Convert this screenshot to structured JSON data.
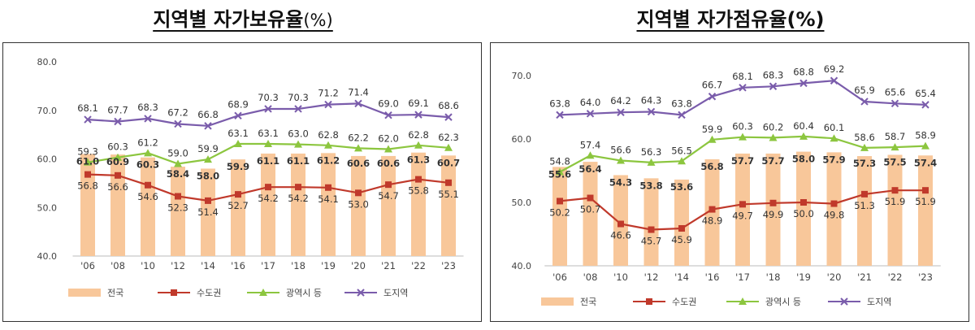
{
  "colors": {
    "bar": "#f8c79a",
    "capital": "#c0392b",
    "metro": "#8cc63f",
    "province": "#7a5cab",
    "text": "#444444"
  },
  "chart_data": [
    {
      "type": "bar-line",
      "title": "지역별 자가보유율",
      "title_unit": "(%)",
      "ylim": [
        40,
        80
      ],
      "yticks": [
        "40.0",
        "50.0",
        "60.0",
        "70.0",
        "80.0"
      ],
      "categories": [
        "'06",
        "'08",
        "'10",
        "'12",
        "'14",
        "'16",
        "'17",
        "'18",
        "'19",
        "'20",
        "'21",
        "'22",
        "'23"
      ],
      "series": [
        {
          "name": "전국",
          "kind": "bar",
          "values": [
            61.0,
            60.9,
            60.3,
            58.4,
            58.0,
            59.9,
            61.1,
            61.1,
            61.2,
            60.6,
            60.6,
            61.3,
            60.7
          ]
        },
        {
          "name": "수도권",
          "kind": "line",
          "marker": "square",
          "values": [
            56.8,
            56.6,
            54.6,
            52.3,
            51.4,
            52.7,
            54.2,
            54.2,
            54.1,
            53.0,
            54.7,
            55.8,
            55.1
          ]
        },
        {
          "name": "광역시 등",
          "kind": "line",
          "marker": "triangle",
          "values": [
            59.3,
            60.3,
            61.2,
            59.0,
            59.9,
            63.1,
            63.1,
            63.0,
            62.8,
            62.2,
            62.0,
            62.8,
            62.3
          ]
        },
        {
          "name": "도지역",
          "kind": "line",
          "marker": "x",
          "values": [
            68.1,
            67.7,
            68.3,
            67.2,
            66.8,
            68.9,
            70.3,
            70.3,
            71.2,
            71.4,
            69.0,
            69.1,
            68.6
          ]
        }
      ],
      "legend": "bottom"
    },
    {
      "type": "bar-line",
      "title": "지역별 자가점유율",
      "title_unit": "(%)",
      "ylim": [
        40,
        70
      ],
      "yticks": [
        "40.0",
        "50.0",
        "60.0",
        "70.0"
      ],
      "categories": [
        "'06",
        "'08",
        "'10",
        "'12",
        "'14",
        "'16",
        "'17",
        "'18",
        "'19",
        "'20",
        "'21",
        "'22",
        "'23"
      ],
      "series": [
        {
          "name": "전국",
          "kind": "bar",
          "values": [
            55.6,
            56.4,
            54.3,
            53.8,
            53.6,
            56.8,
            57.7,
            57.7,
            58.0,
            57.9,
            57.3,
            57.5,
            57.4
          ]
        },
        {
          "name": "수도권",
          "kind": "line",
          "marker": "square",
          "values": [
            50.2,
            50.7,
            46.6,
            45.7,
            45.9,
            48.9,
            49.7,
            49.9,
            50.0,
            49.8,
            51.3,
            51.9,
            51.9
          ]
        },
        {
          "name": "광역시 등",
          "kind": "line",
          "marker": "triangle",
          "values": [
            54.8,
            57.4,
            56.6,
            56.3,
            56.5,
            59.9,
            60.3,
            60.2,
            60.4,
            60.1,
            58.6,
            58.7,
            58.9
          ]
        },
        {
          "name": "도지역",
          "kind": "line",
          "marker": "x",
          "values": [
            63.8,
            64.0,
            64.2,
            64.3,
            63.8,
            66.7,
            68.1,
            68.3,
            68.8,
            69.2,
            65.9,
            65.6,
            65.4
          ]
        }
      ],
      "legend": "bottom"
    }
  ]
}
